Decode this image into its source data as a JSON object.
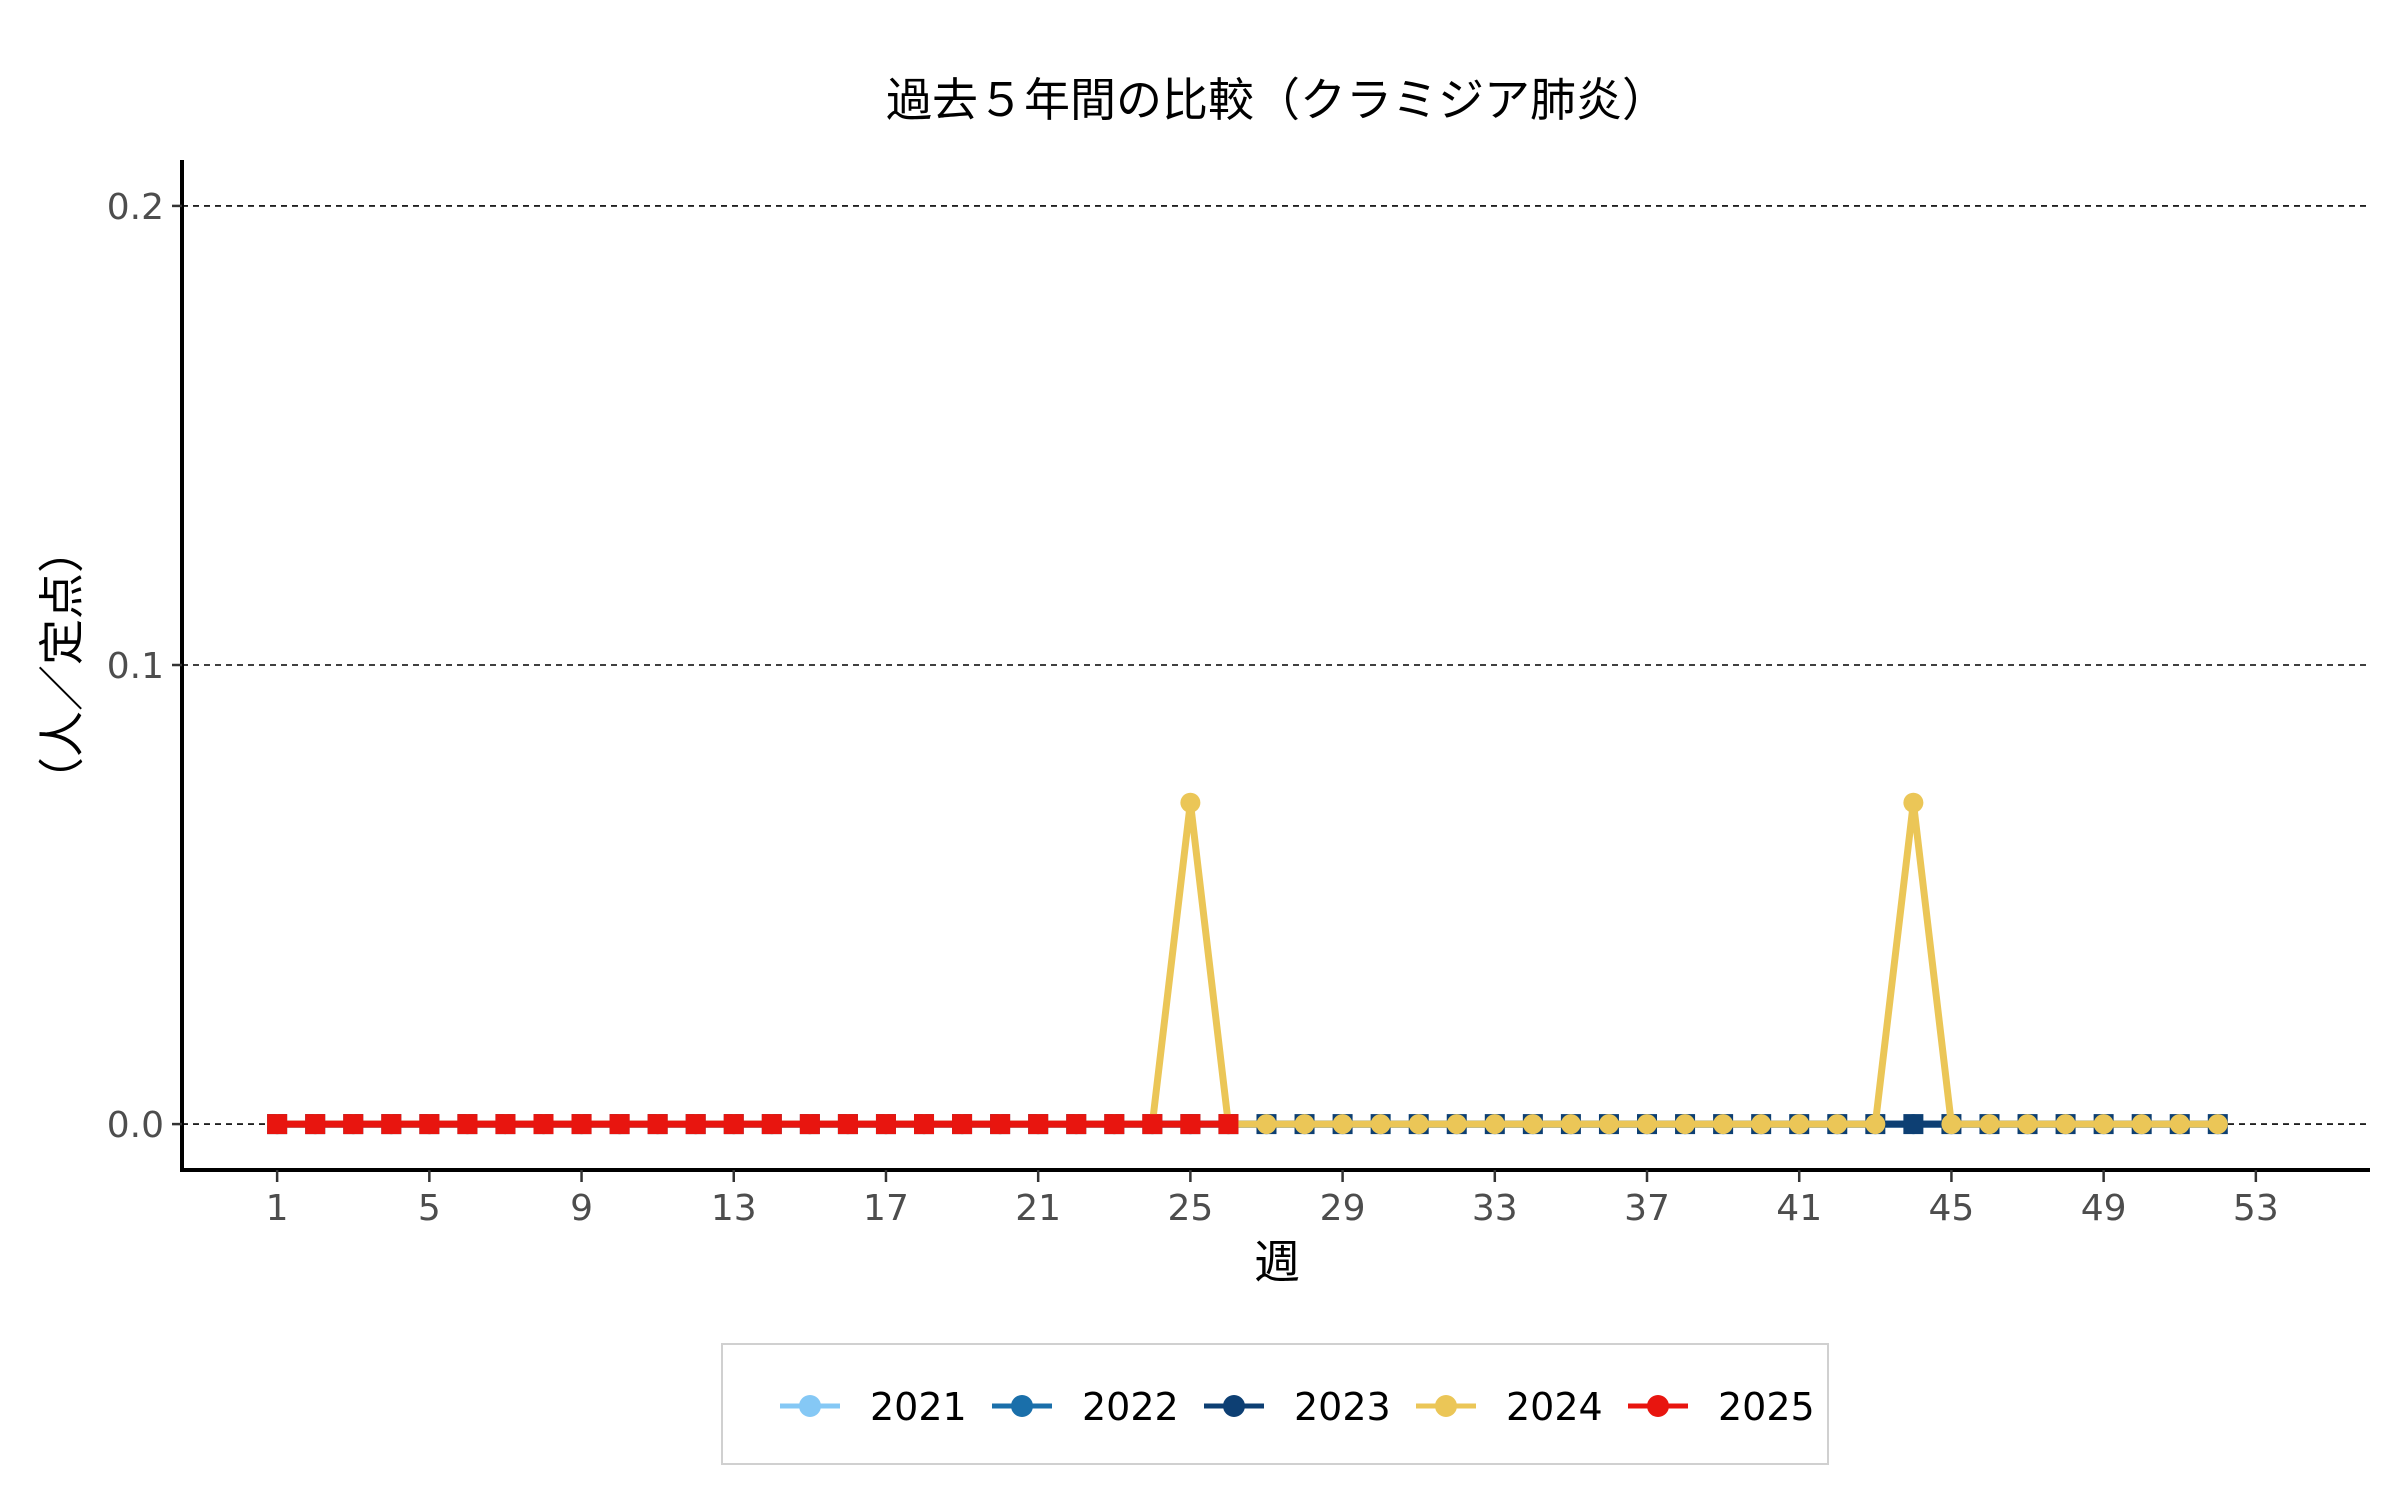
{
  "chart_data": {
    "type": "line",
    "title": "過去５年間の比較（クラミジア肺炎）",
    "xlabel": "週",
    "ylabel": "（人／定点）",
    "xlim": [
      -1.5,
      56
    ],
    "ylim": [
      -0.01,
      0.21
    ],
    "x_ticks": [
      1,
      5,
      9,
      13,
      17,
      21,
      25,
      29,
      33,
      37,
      41,
      45,
      49,
      53
    ],
    "y_ticks": [
      0.0,
      0.1,
      0.2
    ],
    "y_tick_labels": [
      "0.0",
      "0.1",
      "0.2"
    ],
    "grid": "horizontal-dashed",
    "legend_position": "bottom",
    "series": [
      {
        "name": "2021",
        "color": "#85C8F5",
        "marker": "circle",
        "x": [
          1,
          2,
          3,
          4,
          5,
          6,
          7,
          8,
          9,
          10,
          11,
          12,
          13,
          14,
          15,
          16,
          17,
          18,
          19,
          20,
          21,
          22,
          23,
          24,
          25,
          26,
          27,
          28,
          29,
          30,
          31,
          32,
          33,
          34,
          35,
          36,
          37,
          38,
          39,
          40,
          41,
          42,
          43,
          44,
          45,
          46,
          47,
          48,
          49,
          50,
          51,
          52
        ],
        "values": [
          0,
          0,
          0,
          0,
          0,
          0,
          0,
          0,
          0,
          0,
          0,
          0,
          0,
          0,
          0,
          0,
          0,
          0,
          0,
          0,
          0,
          0,
          0,
          0,
          0,
          0,
          0,
          0,
          0,
          0,
          0,
          0,
          0,
          0,
          0,
          0,
          0,
          0,
          0,
          0,
          0,
          0,
          0,
          0,
          0,
          0,
          0,
          0,
          0,
          0,
          0,
          0
        ]
      },
      {
        "name": "2022",
        "color": "#1A6FAA",
        "marker": "circle",
        "x": [
          1,
          2,
          3,
          4,
          5,
          6,
          7,
          8,
          9,
          10,
          11,
          12,
          13,
          14,
          15,
          16,
          17,
          18,
          19,
          20,
          21,
          22,
          23,
          24,
          25,
          26,
          27,
          28,
          29,
          30,
          31,
          32,
          33,
          34,
          35,
          36,
          37,
          38,
          39,
          40,
          41,
          42,
          43,
          44,
          45,
          46,
          47,
          48,
          49,
          50,
          51,
          52
        ],
        "values": [
          0,
          0,
          0,
          0,
          0,
          0,
          0,
          0,
          0,
          0,
          0,
          0,
          0,
          0,
          0,
          0,
          0,
          0,
          0,
          0,
          0,
          0,
          0,
          0,
          0,
          0,
          0,
          0,
          0,
          0,
          0,
          0,
          0,
          0,
          0,
          0,
          0,
          0,
          0,
          0,
          0,
          0,
          0,
          0,
          0,
          0,
          0,
          0,
          0,
          0,
          0,
          0
        ]
      },
      {
        "name": "2023",
        "color": "#0D3F73",
        "marker": "square",
        "x": [
          1,
          2,
          3,
          4,
          5,
          6,
          7,
          8,
          9,
          10,
          11,
          12,
          13,
          14,
          15,
          16,
          17,
          18,
          19,
          20,
          21,
          22,
          23,
          24,
          25,
          26,
          27,
          28,
          29,
          30,
          31,
          32,
          33,
          34,
          35,
          36,
          37,
          38,
          39,
          40,
          41,
          42,
          43,
          44,
          45,
          46,
          47,
          48,
          49,
          50,
          51,
          52
        ],
        "values": [
          0,
          0,
          0,
          0,
          0,
          0,
          0,
          0,
          0,
          0,
          0,
          0,
          0,
          0,
          0,
          0,
          0,
          0,
          0,
          0,
          0,
          0,
          0,
          0,
          0,
          0,
          0,
          0,
          0,
          0,
          0,
          0,
          0,
          0,
          0,
          0,
          0,
          0,
          0,
          0,
          0,
          0,
          0,
          0,
          0,
          0,
          0,
          0,
          0,
          0,
          0,
          0
        ]
      },
      {
        "name": "2024",
        "color": "#EBC657",
        "marker": "circle",
        "x": [
          1,
          2,
          3,
          4,
          5,
          6,
          7,
          8,
          9,
          10,
          11,
          12,
          13,
          14,
          15,
          16,
          17,
          18,
          19,
          20,
          21,
          22,
          23,
          24,
          25,
          26,
          27,
          28,
          29,
          30,
          31,
          32,
          33,
          34,
          35,
          36,
          37,
          38,
          39,
          40,
          41,
          42,
          43,
          44,
          45,
          46,
          47,
          48,
          49,
          50,
          51,
          52
        ],
        "values": [
          0,
          0,
          0,
          0,
          0,
          0,
          0,
          0,
          0,
          0,
          0,
          0,
          0,
          0,
          0,
          0,
          0,
          0,
          0,
          0,
          0,
          0,
          0,
          0,
          0.07,
          0,
          0,
          0,
          0,
          0,
          0,
          0,
          0,
          0,
          0,
          0,
          0,
          0,
          0,
          0,
          0,
          0,
          0,
          0.07,
          0,
          0,
          0,
          0,
          0,
          0,
          0,
          0
        ]
      },
      {
        "name": "2025",
        "color": "#E8150F",
        "marker": "square",
        "x": [
          1,
          2,
          3,
          4,
          5,
          6,
          7,
          8,
          9,
          10,
          11,
          12,
          13,
          14,
          15,
          16,
          17,
          18,
          19,
          20,
          21,
          22,
          23,
          24,
          25,
          26
        ],
        "values": [
          0,
          0,
          0,
          0,
          0,
          0,
          0,
          0,
          0,
          0,
          0,
          0,
          0,
          0,
          0,
          0,
          0,
          0,
          0,
          0,
          0,
          0,
          0,
          0,
          0,
          0
        ]
      }
    ]
  }
}
